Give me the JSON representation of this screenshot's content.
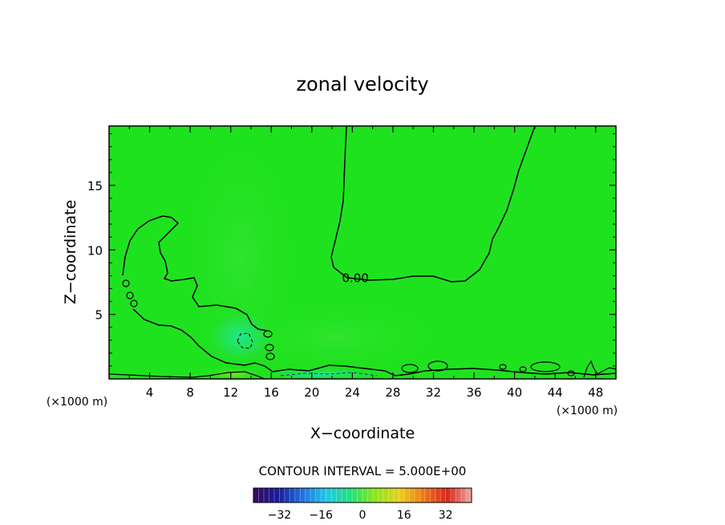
{
  "chart_data": {
    "type": "heatmap",
    "title": "zonal velocity",
    "xlabel": "X−coordinate",
    "ylabel": "Z−coordinate",
    "x_unit": "(×1000 m)",
    "z_unit": "(×1000 m)",
    "xlim": [
      0,
      50
    ],
    "ylim": [
      0,
      19.6
    ],
    "xticks": [
      4,
      8,
      12,
      16,
      20,
      24,
      28,
      32,
      36,
      40,
      44,
      48
    ],
    "yticks": [
      5,
      10,
      15
    ],
    "contour_interval_label": "CONTOUR INTERVAL = 5.000E+00",
    "contour_labels": [
      {
        "text": "0.00",
        "x": 24.3,
        "z": 7.8
      }
    ],
    "colorbar": {
      "min": -42,
      "max": 42,
      "ticks": [
        -32,
        -16,
        0,
        16,
        32
      ],
      "stops": [
        "#3a0a5a",
        "#1a1a9a",
        "#1f6fe0",
        "#21c7e8",
        "#22e07a",
        "#8ae61c",
        "#e6d21c",
        "#ef7a18",
        "#d8261b",
        "#f2a8a0"
      ]
    },
    "field_color": "#1fe21f"
  }
}
